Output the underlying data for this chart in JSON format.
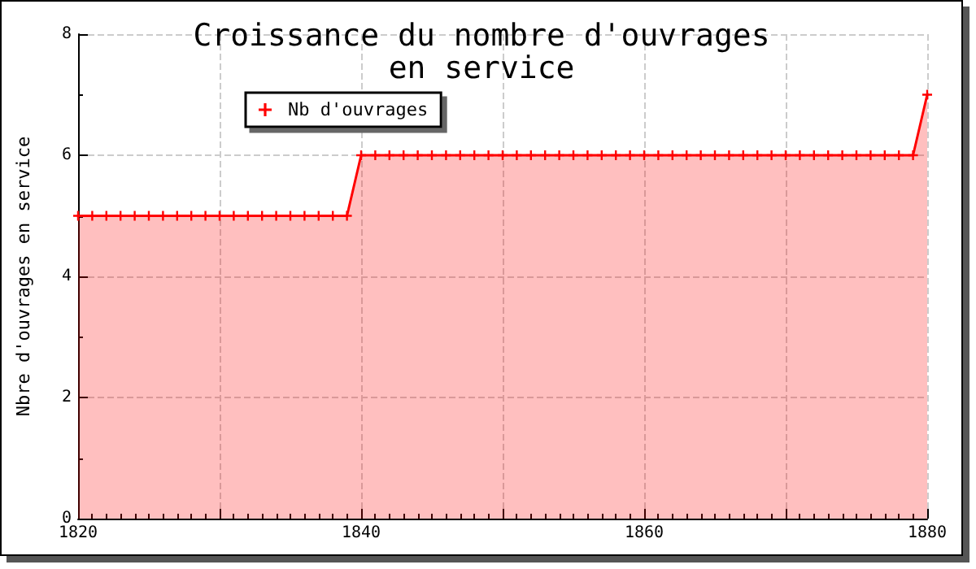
{
  "chart_data": {
    "type": "area",
    "title": "Croissance du nombre d'ouvrages\nen service",
    "ylabel": "Nbre d'ouvrages en service",
    "x": [
      1820,
      1821,
      1822,
      1823,
      1824,
      1825,
      1826,
      1827,
      1828,
      1829,
      1830,
      1831,
      1832,
      1833,
      1834,
      1835,
      1836,
      1837,
      1838,
      1839,
      1840,
      1841,
      1842,
      1843,
      1844,
      1845,
      1846,
      1847,
      1848,
      1849,
      1850,
      1851,
      1852,
      1853,
      1854,
      1855,
      1856,
      1857,
      1858,
      1859,
      1860,
      1861,
      1862,
      1863,
      1864,
      1865,
      1866,
      1867,
      1868,
      1869,
      1870,
      1871,
      1872,
      1873,
      1874,
      1875,
      1876,
      1877,
      1878,
      1879,
      1880
    ],
    "series": [
      {
        "name": "Nb d'ouvrages",
        "color": "#ff0000",
        "values": [
          5,
          5,
          5,
          5,
          5,
          5,
          5,
          5,
          5,
          5,
          5,
          5,
          5,
          5,
          5,
          5,
          5,
          5,
          5,
          5,
          6,
          6,
          6,
          6,
          6,
          6,
          6,
          6,
          6,
          6,
          6,
          6,
          6,
          6,
          6,
          6,
          6,
          6,
          6,
          6,
          6,
          6,
          6,
          6,
          6,
          6,
          6,
          6,
          6,
          6,
          6,
          6,
          6,
          6,
          6,
          6,
          6,
          6,
          6,
          6,
          7
        ]
      }
    ],
    "xlim": [
      1820,
      1880
    ],
    "xticks": [
      1820,
      {
        "value": 1830,
        "label": null
      },
      1840,
      {
        "value": 1850,
        "label": null
      },
      1860,
      {
        "value": 1870,
        "label": null
      },
      1880
    ],
    "ylim": [
      0,
      8
    ],
    "yticks": [
      0,
      2,
      4,
      6,
      8
    ],
    "grid": true,
    "legend": "top left",
    "marker": "cross",
    "line_style": "solid"
  }
}
